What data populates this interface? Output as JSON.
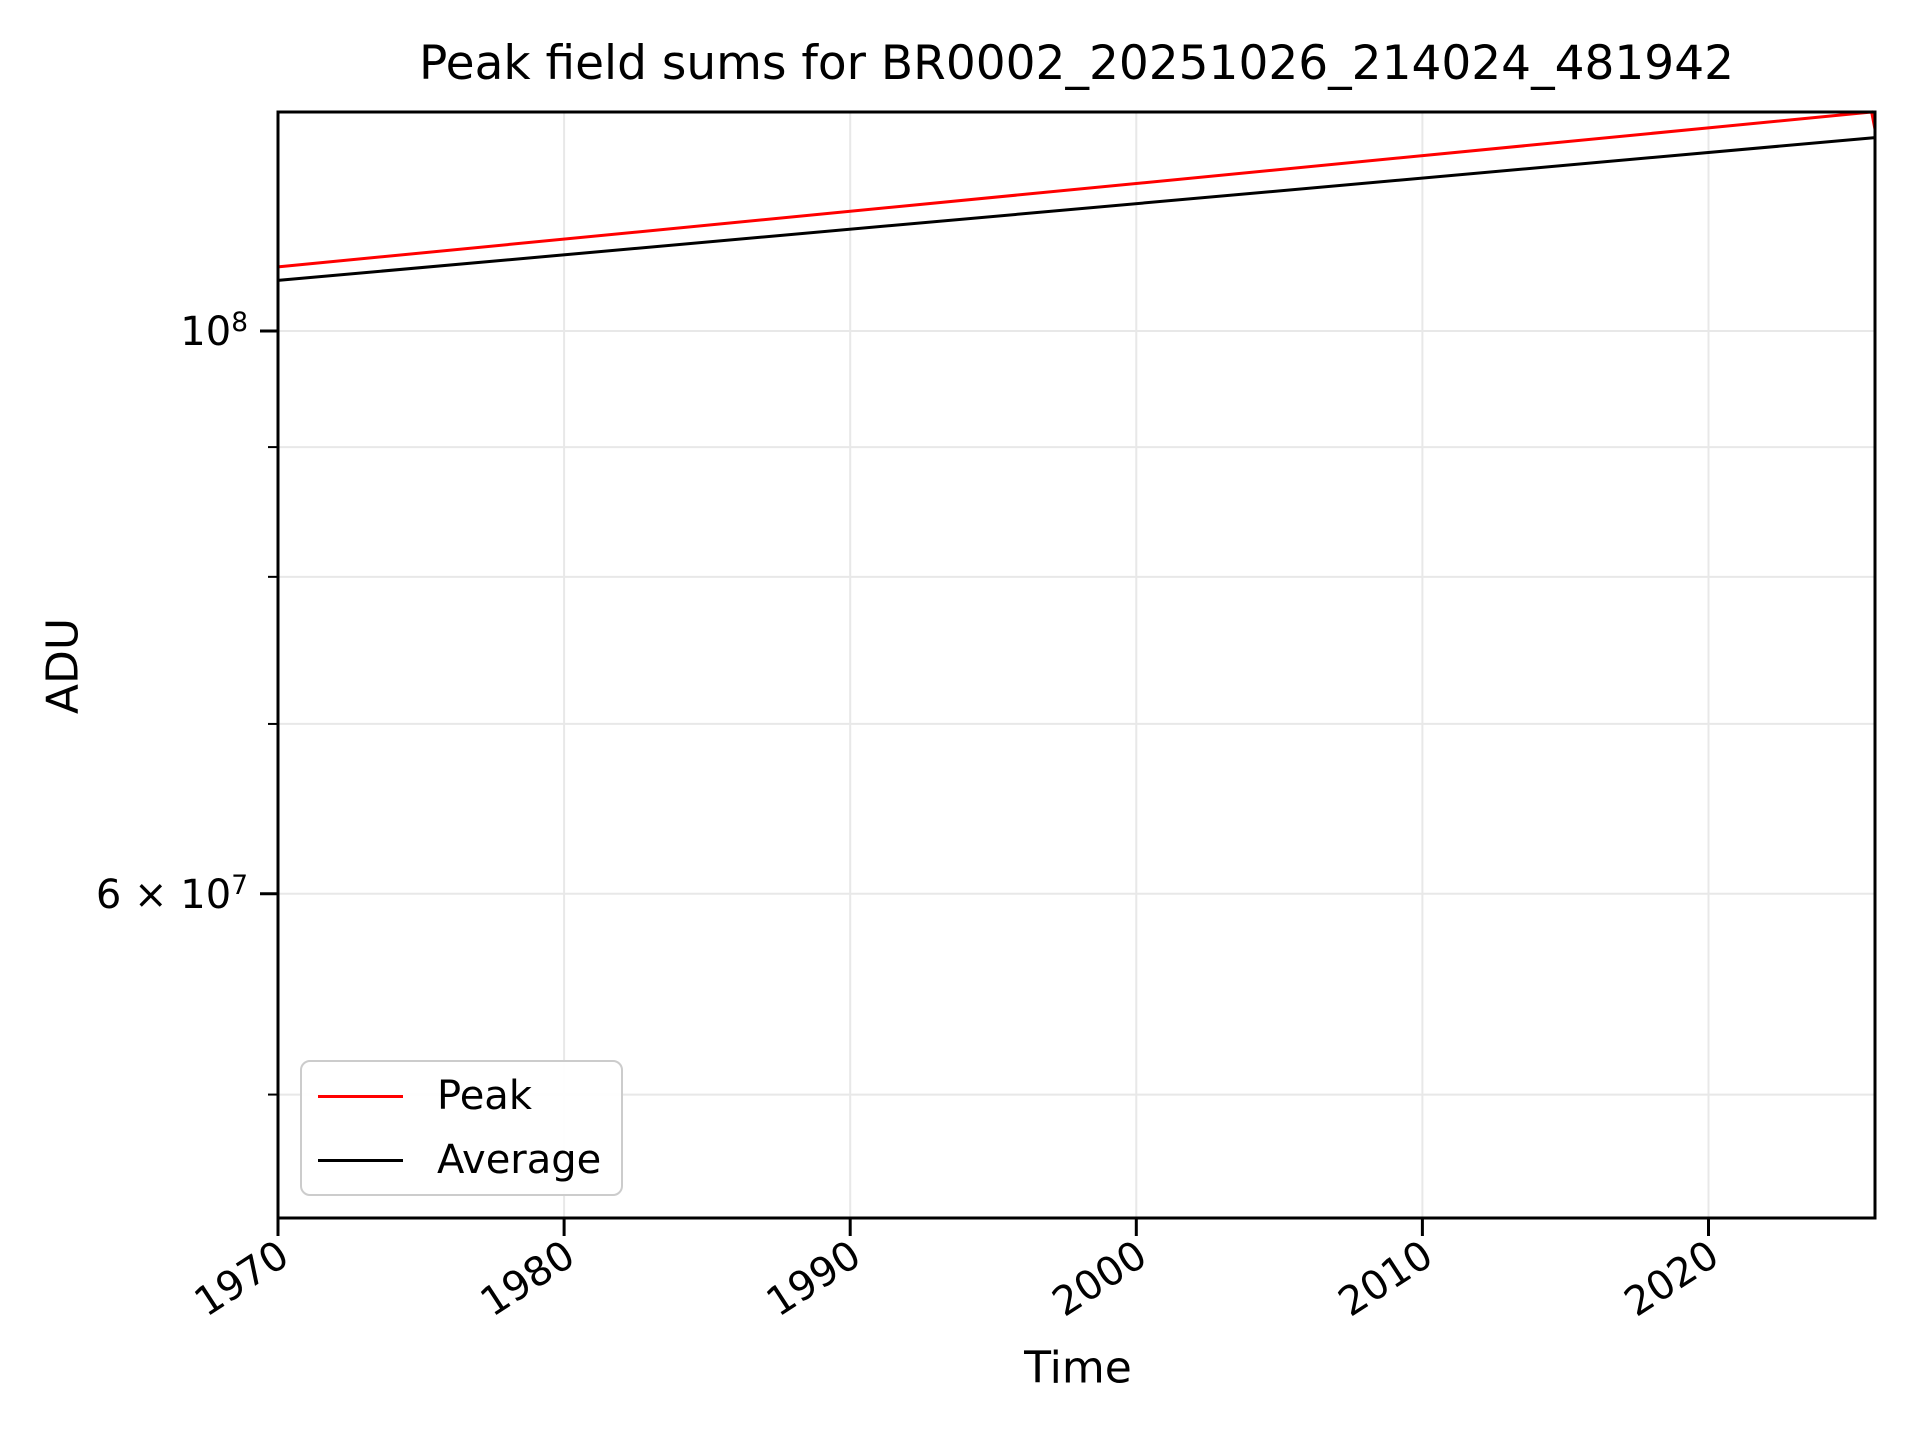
{
  "figure": {
    "title": "Peak field sums for BR0002_20251026_214024_481942",
    "xlabel": "Time",
    "ylabel": "ADU"
  },
  "legend": {
    "position": "lower left",
    "entries": [
      {
        "label": "Peak",
        "color": "#ff0000"
      },
      {
        "label": "Average",
        "color": "#000000"
      }
    ]
  },
  "chart_data": {
    "type": "line",
    "title": "Peak field sums for BR0002_20251026_214024_481942",
    "xlabel": "Time",
    "ylabel": "ADU",
    "yscale": "log",
    "grid": true,
    "legend_position": "lower left",
    "xlim": [
      1970.0,
      2025.82
    ],
    "ylim": [
      44700000,
      122000000
    ],
    "x_ticks": [
      {
        "value": 1970,
        "label": "1970"
      },
      {
        "value": 1980,
        "label": "1980"
      },
      {
        "value": 1990,
        "label": "1990"
      },
      {
        "value": 2000,
        "label": "2000"
      },
      {
        "value": 2010,
        "label": "2010"
      },
      {
        "value": 2020,
        "label": "2020"
      }
    ],
    "y_ticks_major": [
      {
        "value": 100000000,
        "pre": "",
        "base": "10",
        "exp": "8"
      },
      {
        "value": 60000000,
        "pre": "6 × ",
        "base": "10",
        "exp": "7"
      }
    ],
    "y_ticks_minor": [
      90000000,
      80000000,
      70000000,
      50000000
    ],
    "series": [
      {
        "name": "Peak",
        "color": "#ff0000",
        "points": [
          [
            1970.0,
            106000000
          ],
          [
            2025.7,
            122000000
          ],
          [
            2025.82,
            120100000
          ]
        ]
      },
      {
        "name": "Average",
        "color": "#000000",
        "points": [
          [
            1970.0,
            104700000
          ],
          [
            2025.82,
            119200000
          ]
        ]
      }
    ]
  }
}
